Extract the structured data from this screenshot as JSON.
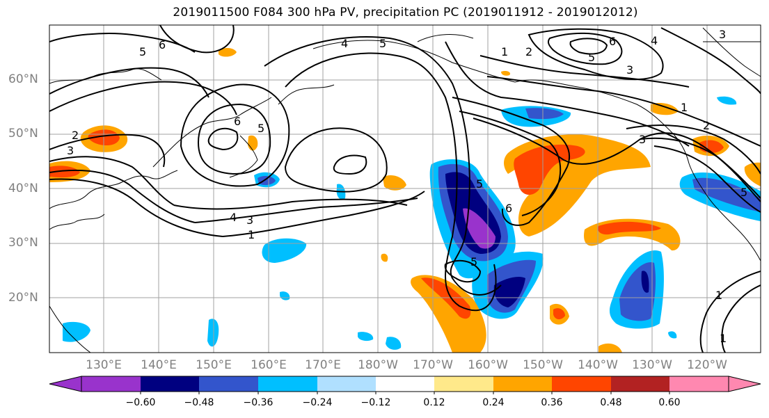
{
  "title": "2019011500 F084 300 hPa PV, precipitation PC (2019011912 - 2019012012)",
  "map": {
    "lat_labels": [
      "60°N",
      "50°N",
      "40°N",
      "30°N",
      "20°N"
    ],
    "lon_labels": [
      "130°E",
      "140°E",
      "150°E",
      "160°E",
      "170°E",
      "180°W",
      "170°W",
      "160°W",
      "150°W",
      "140°W",
      "130°W",
      "120°W"
    ],
    "pv_contour_labels": [
      "1",
      "2",
      "3",
      "4",
      "5",
      "6"
    ]
  },
  "colorbar": {
    "tick_labels": [
      "−0.60",
      "−0.48",
      "−0.36",
      "−0.24",
      "−0.12",
      "0.12",
      "0.24",
      "0.36",
      "0.48",
      "0.60"
    ],
    "colors": [
      "#9933cc",
      "#000080",
      "#3355cc",
      "#00bfff",
      "#b0e0ff",
      "#ffffff",
      "#ffe98a",
      "#ffa500",
      "#ff4500",
      "#b22222",
      "#ff88b0"
    ]
  },
  "colors": {
    "grid": "#a0a0a0",
    "contour": "#000000",
    "axis_label": "#808080"
  }
}
